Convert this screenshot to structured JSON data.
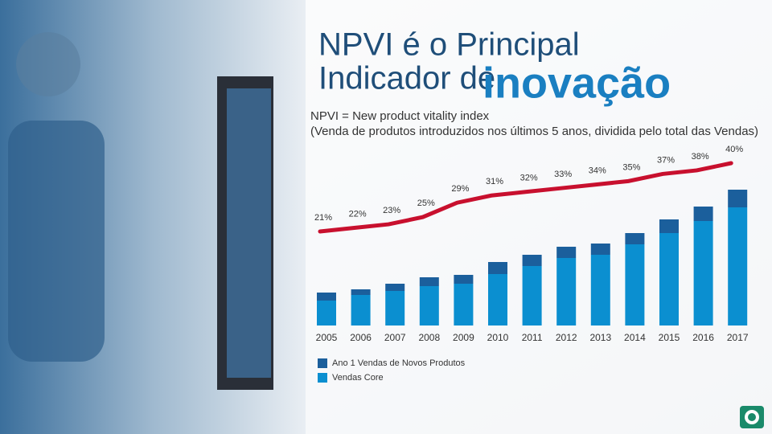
{
  "header": {
    "line1": "NPVI é o Principal",
    "line2": "Indicador de",
    "highlight": "inovação",
    "subtitle1": "NPVI = New product vitality index",
    "subtitle2": "(Venda de produtos introduzidos nos últimos 5 anos, dividida pelo total das Vendas)"
  },
  "chart_data": {
    "type": "bar",
    "categories": [
      "2005",
      "2006",
      "2007",
      "2008",
      "2009",
      "2010",
      "2011",
      "2012",
      "2013",
      "2014",
      "2015",
      "2016",
      "2017"
    ],
    "series": [
      {
        "name": "Ano 1 Vendas de Novos Produtos",
        "color": "#1b5f9c",
        "values": [
          10,
          7,
          9,
          11,
          11,
          15,
          14,
          14,
          14,
          14,
          17,
          18,
          22
        ]
      },
      {
        "name": "Vendas Core",
        "color": "#0b8fd0",
        "values": [
          31,
          38,
          43,
          49,
          52,
          64,
          74,
          84,
          88,
          101,
          115,
          130,
          147
        ]
      },
      {
        "type": "line",
        "color": "#c8102e",
        "values": [
          21,
          22,
          23,
          25,
          29,
          31,
          32,
          33,
          34,
          35,
          37,
          38,
          40
        ],
        "value_labels": [
          "21%",
          "22%",
          "23%",
          "25%",
          "29%",
          "31%",
          "32%",
          "33%",
          "34%",
          "35%",
          "37%",
          "38%",
          "40%"
        ]
      }
    ]
  }
}
